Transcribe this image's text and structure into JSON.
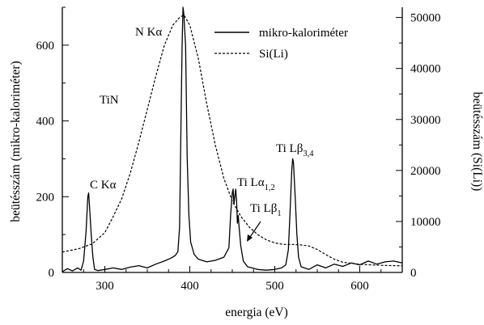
{
  "chart_data": {
    "type": "line",
    "xlabel": "energia (eV)",
    "ylabel_left": "beütésszám (mikro-kaloriméter)",
    "ylabel_right": "beütésszám (Si(Li))",
    "xlim": [
      250,
      650
    ],
    "ylim_left": [
      0,
      700
    ],
    "ylim_right": [
      0,
      52000
    ],
    "x_ticks": [
      300,
      400,
      500,
      600
    ],
    "y_ticks_left": [
      0,
      200,
      400,
      600
    ],
    "y_ticks_right": [
      0,
      10000,
      20000,
      30000,
      40000,
      50000
    ],
    "grid": false,
    "legend_position": "top-right",
    "series": [
      {
        "name": "mikro-kaloriméter",
        "axis": "left",
        "style": "solid",
        "points": [
          [
            250,
            2
          ],
          [
            256,
            10
          ],
          [
            262,
            4
          ],
          [
            268,
            12
          ],
          [
            272,
            6
          ],
          [
            275,
            30
          ],
          [
            278,
            110
          ],
          [
            280,
            200
          ],
          [
            281,
            210
          ],
          [
            282,
            175
          ],
          [
            284,
            100
          ],
          [
            286,
            40
          ],
          [
            288,
            8
          ],
          [
            292,
            5
          ],
          [
            300,
            8
          ],
          [
            310,
            12
          ],
          [
            320,
            8
          ],
          [
            330,
            14
          ],
          [
            340,
            18
          ],
          [
            350,
            12
          ],
          [
            360,
            22
          ],
          [
            370,
            30
          ],
          [
            378,
            38
          ],
          [
            383,
            45
          ],
          [
            386,
            55
          ],
          [
            388,
            120
          ],
          [
            389,
            280
          ],
          [
            390,
            450
          ],
          [
            391,
            600
          ],
          [
            392,
            700
          ],
          [
            393,
            680
          ],
          [
            394,
            640
          ],
          [
            395,
            600
          ],
          [
            396,
            450
          ],
          [
            397,
            300
          ],
          [
            399,
            150
          ],
          [
            401,
            80
          ],
          [
            405,
            48
          ],
          [
            410,
            35
          ],
          [
            420,
            28
          ],
          [
            430,
            32
          ],
          [
            440,
            40
          ],
          [
            446,
            65
          ],
          [
            448,
            150
          ],
          [
            450,
            210
          ],
          [
            451,
            220
          ],
          [
            452,
            180
          ],
          [
            453,
            200
          ],
          [
            454,
            220
          ],
          [
            455,
            190
          ],
          [
            456,
            130
          ],
          [
            457,
            150
          ],
          [
            458,
            120
          ],
          [
            460,
            70
          ],
          [
            463,
            30
          ],
          [
            468,
            15
          ],
          [
            480,
            8
          ],
          [
            490,
            6
          ],
          [
            500,
            8
          ],
          [
            508,
            12
          ],
          [
            513,
            20
          ],
          [
            516,
            60
          ],
          [
            518,
            160
          ],
          [
            520,
            270
          ],
          [
            521,
            300
          ],
          [
            522,
            290
          ],
          [
            524,
            200
          ],
          [
            526,
            100
          ],
          [
            528,
            40
          ],
          [
            531,
            15
          ],
          [
            540,
            8
          ],
          [
            550,
            20
          ],
          [
            560,
            12
          ],
          [
            570,
            22
          ],
          [
            580,
            16
          ],
          [
            590,
            25
          ],
          [
            600,
            20
          ],
          [
            610,
            30
          ],
          [
            620,
            22
          ],
          [
            630,
            28
          ],
          [
            640,
            30
          ],
          [
            650,
            25
          ]
        ]
      },
      {
        "name": "Si(Li)",
        "axis": "right",
        "style": "dashed",
        "points": [
          [
            250,
            4000
          ],
          [
            270,
            4700
          ],
          [
            285,
            5600
          ],
          [
            300,
            7800
          ],
          [
            310,
            11000
          ],
          [
            320,
            14500
          ],
          [
            330,
            19500
          ],
          [
            340,
            25500
          ],
          [
            350,
            32000
          ],
          [
            360,
            38500
          ],
          [
            370,
            44500
          ],
          [
            380,
            48500
          ],
          [
            388,
            50000
          ],
          [
            393,
            50500
          ],
          [
            400,
            48500
          ],
          [
            410,
            42000
          ],
          [
            420,
            33000
          ],
          [
            430,
            25000
          ],
          [
            440,
            18500
          ],
          [
            450,
            14000
          ],
          [
            460,
            11000
          ],
          [
            470,
            8900
          ],
          [
            480,
            7400
          ],
          [
            490,
            6400
          ],
          [
            500,
            5800
          ],
          [
            510,
            5500
          ],
          [
            520,
            5500
          ],
          [
            530,
            5400
          ],
          [
            540,
            5200
          ],
          [
            550,
            4500
          ],
          [
            560,
            3500
          ],
          [
            570,
            2600
          ],
          [
            580,
            2000
          ],
          [
            600,
            1600
          ],
          [
            625,
            1400
          ],
          [
            650,
            1300
          ]
        ]
      }
    ],
    "annotations": {
      "nka": "N Kα",
      "tin": "TiN",
      "cka": "C Kα",
      "tila_main": "Ti Lα",
      "tila_sub": "1,2",
      "tilb1_main": "Ti Lβ",
      "tilb1_sub": "1",
      "tilb34_main": "Ti Lβ",
      "tilb34_sub": "3,4"
    }
  }
}
